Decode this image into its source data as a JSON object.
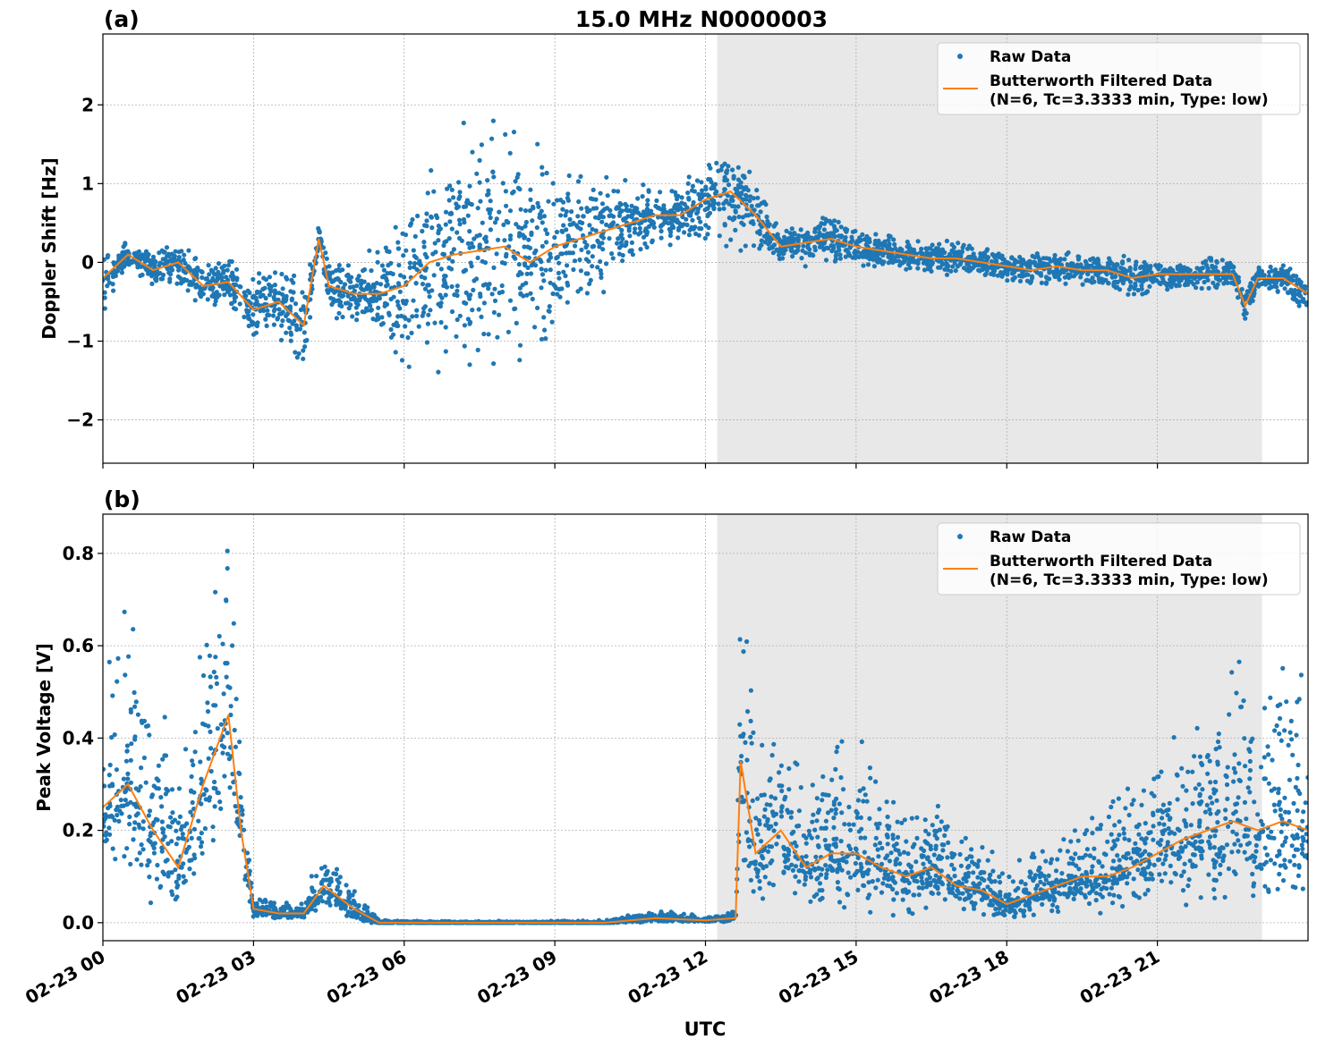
{
  "title": "15.0 MHz N0000003",
  "colors": {
    "raw": "#1f77b4",
    "filtered": "#ff7f0e",
    "shade": "#e8e8e8",
    "grid": "#b0b0b0"
  },
  "chart_data": [
    {
      "type": "scatter",
      "panel_label": "(a)",
      "ylabel": "Doppler Shift [Hz]",
      "xlabel": "",
      "ylim": [
        -2.55,
        2.9
      ],
      "yticks": [
        -2,
        -1,
        0,
        1,
        2
      ],
      "ytick_labels": [
        "−2",
        "−1",
        "0",
        "1",
        "2"
      ],
      "grid": true,
      "shaded_span": [
        "02-23 12:14",
        "02-23 23:05"
      ],
      "legend": {
        "placement": "top-right",
        "entries": [
          "Raw Data",
          "Butterworth Filtered Data",
          "(N=6, Tc=3.3333 min, Type: low)"
        ]
      },
      "x": [
        "02-23 00:00",
        "02-23 00:30",
        "02-23 01:00",
        "02-23 01:30",
        "02-23 02:00",
        "02-23 02:30",
        "02-23 03:00",
        "02-23 03:30",
        "02-23 04:00",
        "02-23 04:18",
        "02-23 04:30",
        "02-23 05:00",
        "02-23 05:30",
        "02-23 06:00",
        "02-23 06:30",
        "02-23 07:00",
        "02-23 07:30",
        "02-23 08:00",
        "02-23 08:30",
        "02-23 09:00",
        "02-23 09:30",
        "02-23 10:00",
        "02-23 10:30",
        "02-23 11:00",
        "02-23 11:30",
        "02-23 12:00",
        "02-23 12:30",
        "02-23 13:00",
        "02-23 13:30",
        "02-23 14:00",
        "02-23 14:30",
        "02-23 15:00",
        "02-23 15:30",
        "02-23 16:00",
        "02-23 16:30",
        "02-23 17:00",
        "02-23 17:30",
        "02-23 18:00",
        "02-23 18:30",
        "02-23 19:00",
        "02-23 19:30",
        "02-23 20:00",
        "02-23 20:30",
        "02-23 21:00",
        "02-23 21:30",
        "02-23 22:00",
        "02-23 22:30",
        "02-23 22:45",
        "02-23 23:00",
        "02-23 23:30",
        "02-23 24:00"
      ],
      "series": [
        {
          "name": "Butterworth Filtered Data",
          "kind": "line",
          "values": [
            -0.2,
            0.1,
            -0.1,
            0.0,
            -0.3,
            -0.25,
            -0.6,
            -0.5,
            -0.8,
            0.3,
            -0.3,
            -0.4,
            -0.4,
            -0.3,
            0.0,
            0.1,
            0.15,
            0.2,
            0.0,
            0.2,
            0.3,
            0.4,
            0.5,
            0.6,
            0.6,
            0.8,
            0.9,
            0.6,
            0.2,
            0.25,
            0.3,
            0.2,
            0.15,
            0.1,
            0.05,
            0.05,
            0.0,
            -0.05,
            -0.1,
            -0.05,
            -0.1,
            -0.1,
            -0.2,
            -0.15,
            -0.15,
            -0.15,
            -0.15,
            -0.55,
            -0.2,
            -0.2,
            -0.4
          ]
        },
        {
          "name": "Raw Data",
          "kind": "scatter",
          "spread": [
            0.3,
            0.1,
            0.15,
            0.2,
            0.2,
            0.2,
            0.3,
            0.4,
            0.4,
            0.2,
            0.3,
            0.3,
            0.4,
            0.7,
            1.0,
            1.1,
            1.2,
            1.2,
            1.1,
            0.8,
            0.6,
            0.5,
            0.4,
            0.3,
            0.3,
            0.4,
            0.5,
            0.4,
            0.15,
            0.2,
            0.25,
            0.2,
            0.15,
            0.15,
            0.15,
            0.15,
            0.15,
            0.15,
            0.15,
            0.15,
            0.15,
            0.15,
            0.2,
            0.15,
            0.15,
            0.15,
            0.15,
            0.15,
            0.15,
            0.15,
            0.2
          ]
        }
      ]
    },
    {
      "type": "scatter",
      "panel_label": "(b)",
      "ylabel": "Peak Voltage [V]",
      "xlabel": "UTC",
      "ylim": [
        -0.039,
        0.885
      ],
      "yticks": [
        0.0,
        0.2,
        0.4,
        0.6,
        0.8
      ],
      "ytick_labels": [
        "0.0",
        "0.2",
        "0.4",
        "0.6",
        "0.8"
      ],
      "xticks": [
        "02-23 00",
        "02-23 03",
        "02-23 06",
        "02-23 09",
        "02-23 12",
        "02-23 15",
        "02-23 18",
        "02-23 21"
      ],
      "grid": true,
      "shaded_span": [
        "02-23 12:14",
        "02-23 23:05"
      ],
      "legend": {
        "placement": "top-right",
        "entries": [
          "Raw Data",
          "Butterworth Filtered Data",
          "(N=6, Tc=3.3333 min, Type: low)"
        ]
      },
      "x": [
        "02-23 00:00",
        "02-23 00:30",
        "02-23 01:00",
        "02-23 01:30",
        "02-23 02:00",
        "02-23 02:30",
        "02-23 02:45",
        "02-23 03:00",
        "02-23 03:30",
        "02-23 04:00",
        "02-23 04:24",
        "02-23 05:00",
        "02-23 05:30",
        "02-23 06:00",
        "02-23 07:00",
        "02-23 08:00",
        "02-23 09:00",
        "02-23 10:00",
        "02-23 11:00",
        "02-23 12:00",
        "02-23 12:36",
        "02-23 12:42",
        "02-23 13:00",
        "02-23 13:30",
        "02-23 14:00",
        "02-23 14:30",
        "02-23 15:00",
        "02-23 15:30",
        "02-23 16:00",
        "02-23 16:30",
        "02-23 17:00",
        "02-23 17:30",
        "02-23 18:00",
        "02-23 18:30",
        "02-23 19:00",
        "02-23 19:30",
        "02-23 20:00",
        "02-23 20:30",
        "02-23 21:00",
        "02-23 21:30",
        "02-23 22:00",
        "02-23 22:30",
        "02-23 23:00",
        "02-23 23:30",
        "02-23 24:00"
      ],
      "series": [
        {
          "name": "Butterworth Filtered Data",
          "kind": "line",
          "values": [
            0.25,
            0.3,
            0.2,
            0.12,
            0.3,
            0.45,
            0.2,
            0.03,
            0.02,
            0.02,
            0.08,
            0.03,
            0.0,
            0.0,
            0.0,
            0.0,
            0.0,
            0.0,
            0.01,
            0.005,
            0.01,
            0.35,
            0.15,
            0.2,
            0.12,
            0.15,
            0.15,
            0.12,
            0.1,
            0.12,
            0.08,
            0.07,
            0.04,
            0.06,
            0.08,
            0.1,
            0.1,
            0.12,
            0.15,
            0.18,
            0.2,
            0.22,
            0.2,
            0.22,
            0.2
          ]
        },
        {
          "name": "Raw Data",
          "kind": "scatter",
          "spread": [
            0.15,
            0.25,
            0.2,
            0.1,
            0.2,
            0.25,
            0.1,
            0.02,
            0.015,
            0.015,
            0.05,
            0.03,
            0.005,
            0.002,
            0.002,
            0.002,
            0.002,
            0.003,
            0.01,
            0.005,
            0.01,
            0.3,
            0.15,
            0.15,
            0.1,
            0.15,
            0.15,
            0.12,
            0.1,
            0.1,
            0.07,
            0.06,
            0.04,
            0.05,
            0.07,
            0.08,
            0.1,
            0.1,
            0.12,
            0.15,
            0.2,
            0.2,
            0.2,
            0.2,
            0.2
          ]
        }
      ]
    }
  ]
}
